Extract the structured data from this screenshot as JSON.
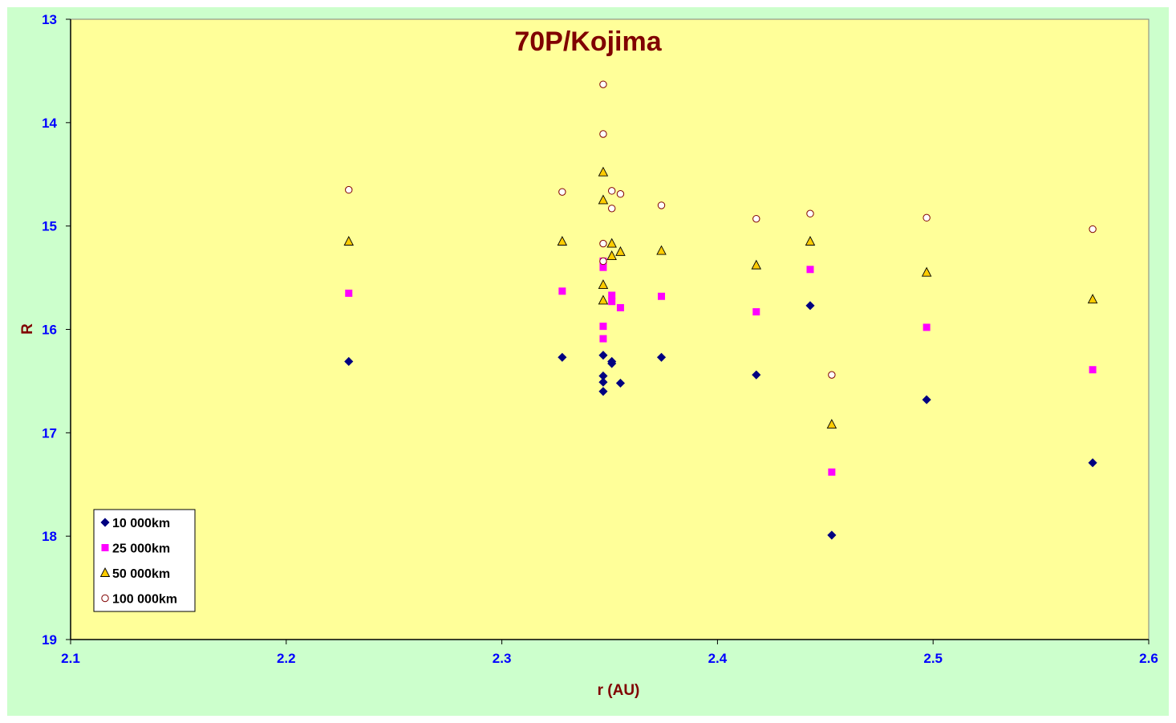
{
  "chart_data": {
    "type": "scatter",
    "title": "70P/Kojima",
    "xlabel": "r (AU)",
    "ylabel": "R",
    "xlim": [
      2.1,
      2.6
    ],
    "ylim": [
      13,
      19
    ],
    "y_inverted": true,
    "x_ticks": [
      "2.1",
      "2.2",
      "2.3",
      "2.4",
      "2.5",
      "2.6"
    ],
    "y_ticks": [
      "13",
      "14",
      "15",
      "16",
      "17",
      "18",
      "19"
    ],
    "grid": false,
    "legend_position": "bottom-left",
    "colors": {
      "background": "#ccffcc",
      "plot_area": "#ffff99",
      "title": "#800000",
      "axis_label": "#800000",
      "tick_label": "#0000ff"
    },
    "series": [
      {
        "name": "10 000km",
        "marker": "diamond",
        "color": "#000080",
        "points": [
          [
            2.229,
            16.31
          ],
          [
            2.328,
            16.27
          ],
          [
            2.347,
            16.25
          ],
          [
            2.347,
            16.45
          ],
          [
            2.347,
            16.51
          ],
          [
            2.347,
            16.6
          ],
          [
            2.351,
            16.31
          ],
          [
            2.351,
            16.33
          ],
          [
            2.355,
            16.52
          ],
          [
            2.374,
            16.27
          ],
          [
            2.418,
            16.44
          ],
          [
            2.443,
            15.77
          ],
          [
            2.453,
            17.99
          ],
          [
            2.497,
            16.68
          ],
          [
            2.574,
            17.29
          ]
        ]
      },
      {
        "name": "25 000km",
        "marker": "square",
        "color": "#ff00ff",
        "points": [
          [
            2.229,
            15.65
          ],
          [
            2.328,
            15.63
          ],
          [
            2.347,
            15.34
          ],
          [
            2.347,
            15.4
          ],
          [
            2.347,
            15.97
          ],
          [
            2.347,
            16.09
          ],
          [
            2.351,
            15.67
          ],
          [
            2.351,
            15.73
          ],
          [
            2.355,
            15.79
          ],
          [
            2.374,
            15.68
          ],
          [
            2.418,
            15.83
          ],
          [
            2.443,
            15.42
          ],
          [
            2.453,
            17.38
          ],
          [
            2.497,
            15.98
          ],
          [
            2.574,
            16.39
          ]
        ]
      },
      {
        "name": "50 000km",
        "marker": "triangle",
        "color": "#ffcc00",
        "points": [
          [
            2.229,
            15.15
          ],
          [
            2.328,
            15.15
          ],
          [
            2.347,
            14.48
          ],
          [
            2.347,
            14.75
          ],
          [
            2.347,
            15.57
          ],
          [
            2.347,
            15.72
          ],
          [
            2.351,
            15.17
          ],
          [
            2.351,
            15.29
          ],
          [
            2.355,
            15.25
          ],
          [
            2.374,
            15.24
          ],
          [
            2.418,
            15.38
          ],
          [
            2.443,
            15.15
          ],
          [
            2.453,
            16.92
          ],
          [
            2.497,
            15.45
          ],
          [
            2.574,
            15.71
          ]
        ]
      },
      {
        "name": "100 000km",
        "marker": "circle",
        "color": "#ffffff",
        "edge": "#800000",
        "points": [
          [
            2.229,
            14.65
          ],
          [
            2.328,
            14.67
          ],
          [
            2.347,
            13.63
          ],
          [
            2.347,
            14.11
          ],
          [
            2.347,
            15.17
          ],
          [
            2.347,
            15.34
          ],
          [
            2.351,
            14.66
          ],
          [
            2.351,
            14.83
          ],
          [
            2.355,
            14.69
          ],
          [
            2.374,
            14.8
          ],
          [
            2.418,
            14.93
          ],
          [
            2.443,
            14.88
          ],
          [
            2.453,
            16.44
          ],
          [
            2.497,
            14.92
          ],
          [
            2.574,
            15.03
          ]
        ]
      }
    ]
  }
}
